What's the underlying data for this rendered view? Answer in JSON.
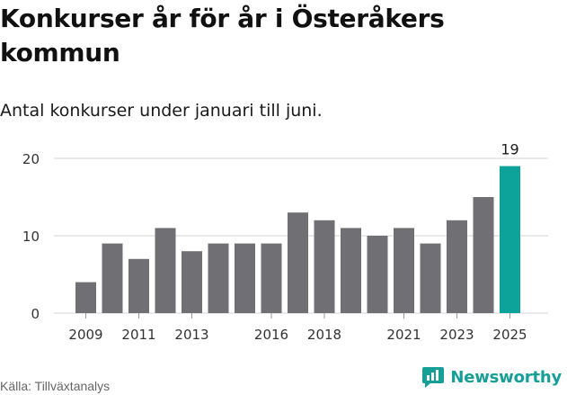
{
  "title": "Konkurser år för år i Österåkers kommun",
  "subtitle": "Antal konkurser under januari till juni.",
  "source": "Källa: Tillväxtanalys",
  "brand": "Newsworthy",
  "colors": {
    "bar": "#707074",
    "highlight": "#0ea39a",
    "grid": "#d6d6d6",
    "axis_text": "#333333",
    "brand": "#159f96"
  },
  "chart_data": {
    "type": "bar",
    "categories": [
      "2009",
      "2010",
      "2011",
      "2012",
      "2013",
      "2014",
      "2015",
      "2016",
      "2017",
      "2018",
      "2019",
      "2020",
      "2021",
      "2022",
      "2023",
      "2024",
      "2025"
    ],
    "values": [
      4,
      9,
      7,
      11,
      8,
      9,
      9,
      9,
      13,
      12,
      11,
      10,
      11,
      9,
      12,
      15,
      19
    ],
    "highlight_category": "2025",
    "data_labels": [
      {
        "category": "2025",
        "text": "19"
      }
    ],
    "x_tick_labels": [
      "2009",
      "2011",
      "2013",
      "2016",
      "2018",
      "2021",
      "2023",
      "2025"
    ],
    "y_ticks": [
      0,
      10,
      20
    ],
    "ylim": [
      0,
      20
    ],
    "grid": true,
    "title": "Konkurser år för år i Österåkers kommun",
    "subtitle": "Antal konkurser under januari till juni."
  }
}
